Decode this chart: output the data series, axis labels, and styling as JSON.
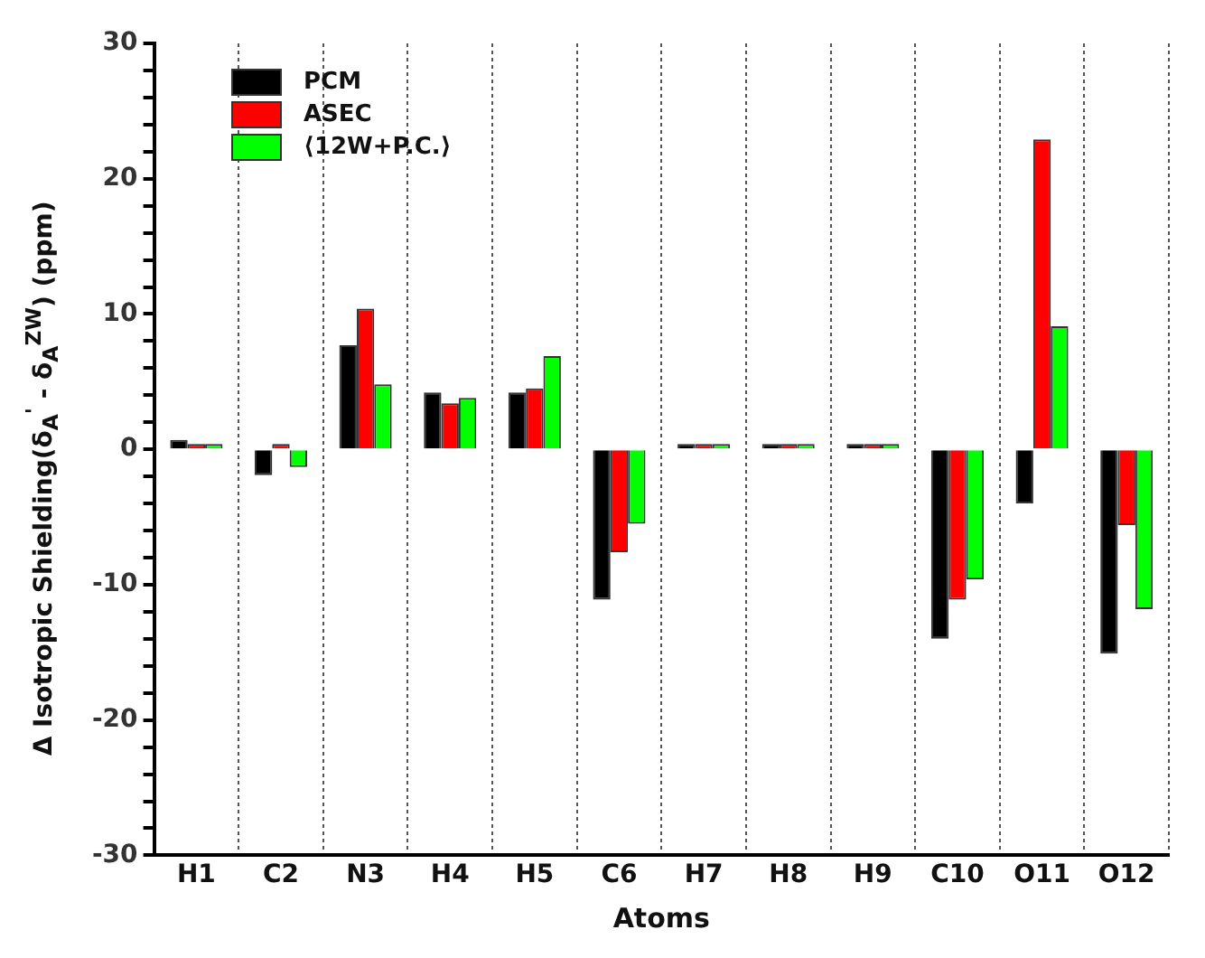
{
  "chart_data": {
    "type": "bar",
    "xlabel": "Atoms",
    "ylabel": "Δ Isotropic Shielding(δ$_{A}$$^{'}$ - δ$_{A}$$^{ZW}$) (ppm)",
    "categories": [
      "H1",
      "C2",
      "N3",
      "H4",
      "H5",
      "C6",
      "H7",
      "H8",
      "H9",
      "C10",
      "O11",
      "O12"
    ],
    "series": [
      {
        "name": "PCM",
        "color": "#000000",
        "values": [
          0.7,
          -1.9,
          7.7,
          4.2,
          4.2,
          -11.1,
          0.1,
          0.1,
          0.1,
          -14.0,
          -4.0,
          -15.1
        ]
      },
      {
        "name": "ASEC",
        "color": "#ff0000",
        "values": [
          0.4,
          0.4,
          10.4,
          3.4,
          4.5,
          -7.6,
          0.1,
          0.2,
          0.2,
          -11.1,
          22.9,
          -5.6
        ]
      },
      {
        "name": "⟨12W+P.C.⟩",
        "color": "#00ff00",
        "values": [
          0.2,
          -1.3,
          4.8,
          3.8,
          6.9,
          -5.5,
          0.1,
          0.1,
          0.2,
          -9.6,
          9.1,
          -11.8
        ]
      }
    ],
    "ylim": [
      -30,
      30
    ],
    "yticks": [
      -30,
      {
        "value": -28,
        "label": null
      },
      {
        "value": -26,
        "label": null
      },
      {
        "value": -24,
        "label": null
      },
      {
        "value": -22,
        "label": null
      },
      -20,
      {
        "value": -18,
        "label": null
      },
      {
        "value": -16,
        "label": null
      },
      {
        "value": -14,
        "label": null
      },
      {
        "value": -12,
        "label": null
      },
      -10,
      {
        "value": -8,
        "label": null
      },
      {
        "value": -6,
        "label": null
      },
      {
        "value": -4,
        "label": null
      },
      {
        "value": -2,
        "label": null
      },
      0,
      {
        "value": 2,
        "label": null
      },
      {
        "value": 4,
        "label": null
      },
      {
        "value": 6,
        "label": null
      },
      {
        "value": 8,
        "label": null
      },
      10,
      {
        "value": 12,
        "label": null
      },
      {
        "value": 14,
        "label": null
      },
      {
        "value": 16,
        "label": null
      },
      {
        "value": 18,
        "label": null
      },
      20,
      {
        "value": 22,
        "label": null
      },
      {
        "value": 24,
        "label": null
      },
      {
        "value": 26,
        "label": null
      },
      {
        "value": 28,
        "label": null
      },
      30
    ],
    "grid": "x",
    "legend": "top left"
  }
}
